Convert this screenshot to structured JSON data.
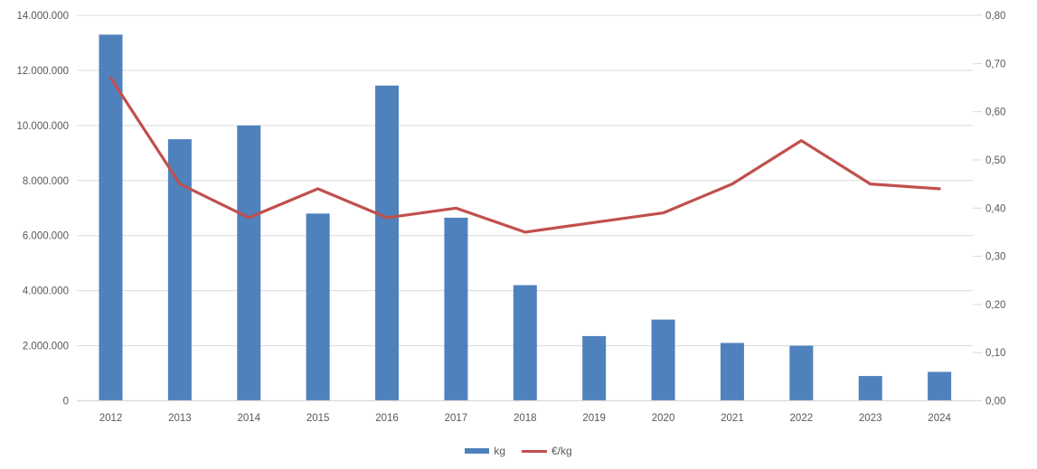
{
  "chart_data": {
    "type": "combo",
    "title": "",
    "categories": [
      "2012",
      "2013",
      "2014",
      "2015",
      "2016",
      "2017",
      "2018",
      "2019",
      "2020",
      "2021",
      "2022",
      "2023",
      "2024"
    ],
    "series": [
      {
        "name": "kg",
        "type": "bar",
        "axis": "left",
        "color": "#4F81BD",
        "values": [
          13300000,
          9500000,
          10000000,
          6800000,
          11450000,
          6650000,
          4200000,
          2350000,
          2950000,
          2100000,
          2000000,
          900000,
          1050000
        ]
      },
      {
        "name": "€/kg",
        "type": "line",
        "axis": "right",
        "color": "#C0504D",
        "values": [
          0.67,
          0.45,
          0.38,
          0.44,
          0.38,
          0.4,
          0.35,
          0.37,
          0.39,
          0.45,
          0.54,
          0.45,
          0.44
        ]
      }
    ],
    "left_axis": {
      "min": 0,
      "max": 14000000,
      "tick_values": [
        0,
        2000000,
        4000000,
        6000000,
        8000000,
        10000000,
        12000000,
        14000000
      ],
      "tick_labels": [
        "0",
        "2.000.000",
        "4.000.000",
        "6.000.000",
        "8.000.000",
        "10.000.000",
        "12.000.000",
        "14.000.000"
      ]
    },
    "right_axis": {
      "min": 0,
      "max": 0.8,
      "tick_values": [
        0,
        0.1,
        0.2,
        0.3,
        0.4,
        0.5,
        0.6,
        0.7,
        0.8
      ],
      "tick_labels": [
        "0,00",
        "0,10",
        "0,20",
        "0,30",
        "0,40",
        "0,50",
        "0,60",
        "0,70",
        "0,80"
      ]
    },
    "grid": true,
    "legend_position": "bottom-center",
    "colors": {
      "grid": "#D9D9D9",
      "axis_text": "#595959",
      "background": "#FFFFFF"
    }
  },
  "legend": {
    "items": [
      {
        "label": "kg",
        "swatch": "bar",
        "color": "#4F81BD"
      },
      {
        "label": "€/kg",
        "swatch": "line",
        "color": "#C0504D"
      }
    ]
  }
}
